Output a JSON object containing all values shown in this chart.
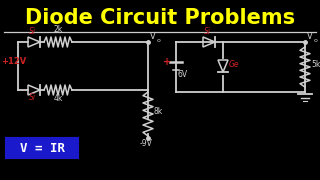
{
  "bg_color": "#000000",
  "title": "Diode Circuit Problems",
  "title_color": "#ffff00",
  "title_fontsize": 15,
  "wire_color": "#d0d0d0",
  "white": "#ffffff",
  "red_color": "#cc2222",
  "circuit1": {
    "voltage_label": "+12V",
    "diode1_label": "Si",
    "diode2_label": "Si",
    "r1_label": "2k",
    "r2_label": "4k",
    "r3_label": "8k",
    "vo_label": "V",
    "vo_sub": "o",
    "neg_label": "-9V"
  },
  "circuit2": {
    "voltage_label": "6V",
    "diode1_label": "Si",
    "diode2_label": "Ge",
    "r1_label": "5k",
    "vo_label": "V",
    "vo_sub": "o"
  },
  "formula_text": "V = IR",
  "formula_box_color": "#1a1acc",
  "formula_text_color": "#ffffff",
  "formula_fontsize": 9,
  "sep_color": "#cccccc"
}
